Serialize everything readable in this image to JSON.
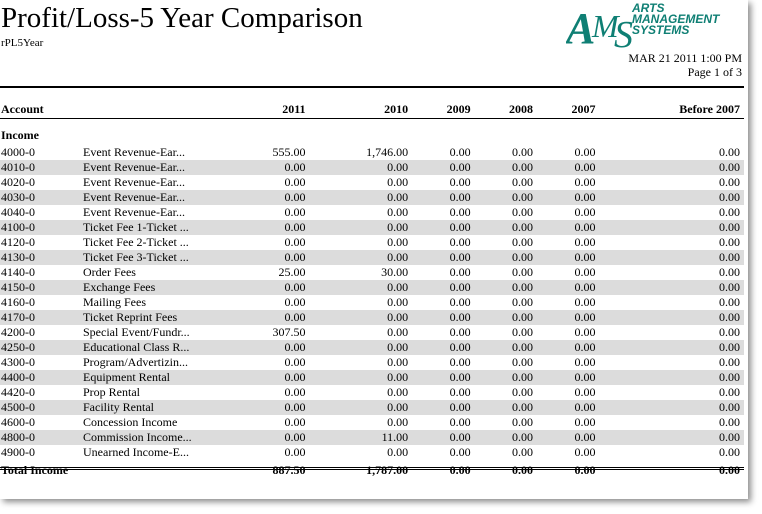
{
  "report": {
    "title": "Profit/Loss-5 Year Comparison",
    "report_id": "rPL5Year",
    "logo_lines": [
      "ARTS",
      "MANAGEMENT",
      "SYSTEMS"
    ],
    "date": "MAR 21 2011 1:00 PM",
    "page": "Page 1 of 3"
  },
  "table": {
    "headers": [
      "Account",
      "2011",
      "2010",
      "2009",
      "2008",
      "2007",
      "Before 2007"
    ],
    "section": "Income",
    "rows": [
      {
        "acct": "4000-0",
        "name": "Event Revenue-Ear...",
        "v": [
          "555.00",
          "1,746.00",
          "0.00",
          "0.00",
          "0.00",
          "0.00"
        ]
      },
      {
        "acct": "4010-0",
        "name": "Event Revenue-Ear...",
        "v": [
          "0.00",
          "0.00",
          "0.00",
          "0.00",
          "0.00",
          "0.00"
        ]
      },
      {
        "acct": "4020-0",
        "name": "Event Revenue-Ear...",
        "v": [
          "0.00",
          "0.00",
          "0.00",
          "0.00",
          "0.00",
          "0.00"
        ]
      },
      {
        "acct": "4030-0",
        "name": "Event Revenue-Ear...",
        "v": [
          "0.00",
          "0.00",
          "0.00",
          "0.00",
          "0.00",
          "0.00"
        ]
      },
      {
        "acct": "4040-0",
        "name": "Event Revenue-Ear...",
        "v": [
          "0.00",
          "0.00",
          "0.00",
          "0.00",
          "0.00",
          "0.00"
        ]
      },
      {
        "acct": "4100-0",
        "name": "Ticket Fee 1-Ticket ...",
        "v": [
          "0.00",
          "0.00",
          "0.00",
          "0.00",
          "0.00",
          "0.00"
        ]
      },
      {
        "acct": "4120-0",
        "name": "Ticket Fee 2-Ticket ...",
        "v": [
          "0.00",
          "0.00",
          "0.00",
          "0.00",
          "0.00",
          "0.00"
        ]
      },
      {
        "acct": "4130-0",
        "name": "Ticket Fee 3-Ticket ...",
        "v": [
          "0.00",
          "0.00",
          "0.00",
          "0.00",
          "0.00",
          "0.00"
        ]
      },
      {
        "acct": "4140-0",
        "name": "Order Fees",
        "v": [
          "25.00",
          "30.00",
          "0.00",
          "0.00",
          "0.00",
          "0.00"
        ]
      },
      {
        "acct": "4150-0",
        "name": "Exchange Fees",
        "v": [
          "0.00",
          "0.00",
          "0.00",
          "0.00",
          "0.00",
          "0.00"
        ]
      },
      {
        "acct": "4160-0",
        "name": "Mailing Fees",
        "v": [
          "0.00",
          "0.00",
          "0.00",
          "0.00",
          "0.00",
          "0.00"
        ]
      },
      {
        "acct": "4170-0",
        "name": "Ticket Reprint Fees",
        "v": [
          "0.00",
          "0.00",
          "0.00",
          "0.00",
          "0.00",
          "0.00"
        ]
      },
      {
        "acct": "4200-0",
        "name": "Special Event/Fundr...",
        "v": [
          "307.50",
          "0.00",
          "0.00",
          "0.00",
          "0.00",
          "0.00"
        ]
      },
      {
        "acct": "4250-0",
        "name": "Educational Class R...",
        "v": [
          "0.00",
          "0.00",
          "0.00",
          "0.00",
          "0.00",
          "0.00"
        ]
      },
      {
        "acct": "4300-0",
        "name": "Program/Advertizin...",
        "v": [
          "0.00",
          "0.00",
          "0.00",
          "0.00",
          "0.00",
          "0.00"
        ]
      },
      {
        "acct": "4400-0",
        "name": "Equipment Rental",
        "v": [
          "0.00",
          "0.00",
          "0.00",
          "0.00",
          "0.00",
          "0.00"
        ]
      },
      {
        "acct": "4420-0",
        "name": "Prop Rental",
        "v": [
          "0.00",
          "0.00",
          "0.00",
          "0.00",
          "0.00",
          "0.00"
        ]
      },
      {
        "acct": "4500-0",
        "name": "Facility Rental",
        "v": [
          "0.00",
          "0.00",
          "0.00",
          "0.00",
          "0.00",
          "0.00"
        ]
      },
      {
        "acct": "4600-0",
        "name": "Concession Income",
        "v": [
          "0.00",
          "0.00",
          "0.00",
          "0.00",
          "0.00",
          "0.00"
        ]
      },
      {
        "acct": "4800-0",
        "name": "Commission Income...",
        "v": [
          "0.00",
          "11.00",
          "0.00",
          "0.00",
          "0.00",
          "0.00"
        ]
      },
      {
        "acct": "4900-0",
        "name": "Unearned Income-E...",
        "v": [
          "0.00",
          "0.00",
          "0.00",
          "0.00",
          "0.00",
          "0.00"
        ]
      }
    ],
    "total": {
      "label": "Total Income",
      "v": [
        "887.50",
        "1,787.00",
        "0.00",
        "0.00",
        "0.00",
        "0.00"
      ]
    }
  }
}
